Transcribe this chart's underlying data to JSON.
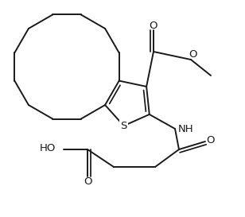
{
  "bg_color": "#ffffff",
  "line_color": "#1a1a1a",
  "bond_lw": 1.4,
  "font_size": 9.5,
  "fig_w": 3.08,
  "fig_h": 2.73,
  "dpi": 100,
  "xlim": [
    0,
    308
  ],
  "ylim": [
    0,
    273
  ]
}
